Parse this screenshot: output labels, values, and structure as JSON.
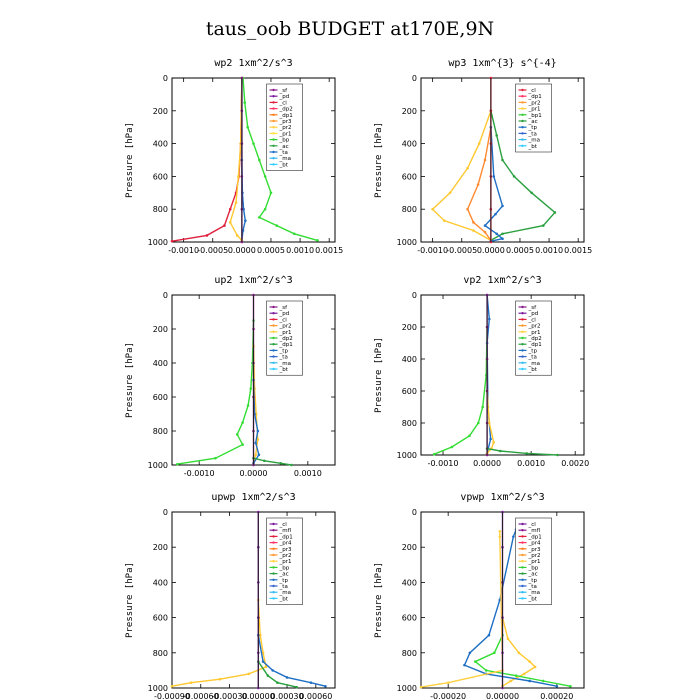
{
  "figure_title": "taus_oob  BUDGET at170E,9N",
  "chart_data": [
    {
      "type": "line",
      "title": "wp2  1xm^2/s^3",
      "ylabel": "Pressure [hPa]",
      "xlim": [
        -0.0012,
        0.0016
      ],
      "ylim": [
        0,
        1000
      ],
      "y_reversed": true,
      "xtick_labels": [
        "-0.0010",
        "-0.0005",
        "0.0000",
        "0.0005",
        "0.0010",
        "0.0015"
      ],
      "xticks": [
        -0.001,
        -0.0005,
        0,
        0.0005,
        0.001,
        0.0015
      ],
      "ytick_labels": [
        "0",
        "200",
        "400",
        "600",
        "800",
        "1000"
      ],
      "yticks": [
        0,
        200,
        400,
        600,
        800,
        1000
      ],
      "legend": [
        "_sf",
        "_pd",
        "_cl",
        "_dp2",
        "_dp1",
        "_pr3",
        "_pr2",
        "_pr1",
        "_bp",
        "_ac",
        "_ta",
        "_ma",
        "_bt"
      ],
      "legend_colors": [
        "#8b1a8b",
        "#7a1c9c",
        "#e0203c",
        "#ff3366",
        "#ff7a1a",
        "#ff9a30",
        "#ffd040",
        "#ffe040",
        "#33cc33",
        "#2aa040",
        "#1f6fc4",
        "#33bbee",
        "#33ccff"
      ],
      "series": [
        {
          "name": "_bp",
          "color": "#33dd33",
          "x": [
            2e-05,
            5e-05,
            0.0001,
            0.0002,
            0.0003,
            0.0004,
            0.0005,
            0.0004,
            0.0003,
            0.0006,
            0.0009,
            0.0013
          ],
          "y": [
            0,
            150,
            300,
            400,
            500,
            600,
            700,
            800,
            850,
            900,
            950,
            990
          ]
        },
        {
          "name": "_cl",
          "color": "#e0203c",
          "x": [
            0,
            -2e-05,
            -5e-05,
            -0.0001,
            -0.0002,
            -0.0003,
            -0.0006,
            -0.0012
          ],
          "y": [
            0,
            400,
            600,
            700,
            800,
            900,
            960,
            995
          ]
        },
        {
          "name": "_ta",
          "color": "#1f6fc4",
          "x": [
            0,
            0,
            1e-05,
            3e-05,
            6e-05,
            2e-05,
            0
          ],
          "y": [
            0,
            500,
            700,
            800,
            870,
            930,
            990
          ]
        },
        {
          "name": "_pr2",
          "color": "#ffc830",
          "x": [
            0,
            -2e-05,
            -6e-05,
            -0.0001,
            -0.0002,
            -8e-05,
            0
          ],
          "y": [
            0,
            400,
            600,
            760,
            880,
            960,
            990
          ]
        },
        {
          "name": "_sf",
          "color": "#8b1a8b",
          "x": [
            0,
            0,
            0,
            0,
            0,
            0
          ],
          "y": [
            0,
            200,
            400,
            600,
            800,
            1000
          ]
        }
      ]
    },
    {
      "type": "line",
      "title": "wp3  1xm^{3} s^{-4}",
      "ylabel": "Pressure [hPa]",
      "xlim": [
        -0.0012,
        0.0016
      ],
      "ylim": [
        0,
        1000
      ],
      "y_reversed": true,
      "xtick_labels": [
        "-0.0010",
        "-0.0005",
        "0.0000",
        "0.0005",
        "0.0010",
        "0.0015"
      ],
      "xticks": [
        -0.001,
        -0.0005,
        0,
        0.0005,
        0.001,
        0.0015
      ],
      "ytick_labels": [
        "0",
        "200",
        "400",
        "600",
        "800",
        "1000"
      ],
      "yticks": [
        0,
        200,
        400,
        600,
        800,
        1000
      ],
      "legend": [
        "_cl",
        "_dp1",
        "_pr2",
        "_pr1",
        "_bp1",
        "_ac",
        "_tp",
        "_ta",
        "_ma",
        "_bt"
      ],
      "legend_colors": [
        "#e0203c",
        "#ff3366",
        "#ff9a30",
        "#ffd040",
        "#33cc33",
        "#2aa040",
        "#1f6fc4",
        "#3366cc",
        "#33bbee",
        "#33ccff"
      ],
      "series": [
        {
          "name": "_ac",
          "color": "#2aa040",
          "x": [
            0,
            0.0001,
            0.0002,
            0.0004,
            0.0007,
            0.0011,
            0.0009,
            0.0002,
            0
          ],
          "y": [
            200,
            350,
            500,
            600,
            700,
            820,
            900,
            950,
            990
          ]
        },
        {
          "name": "_pr1",
          "color": "#ffc830",
          "x": [
            0,
            -0.0002,
            -0.0004,
            -0.0007,
            -0.001,
            -0.0008,
            -0.0003,
            0
          ],
          "y": [
            200,
            400,
            550,
            700,
            800,
            870,
            930,
            990
          ]
        },
        {
          "name": "_pr2",
          "color": "#ff8a30",
          "x": [
            0,
            -0.0001,
            -0.00022,
            -0.0004,
            -0.0003,
            -0.0001,
            0
          ],
          "y": [
            300,
            500,
            650,
            800,
            880,
            940,
            990
          ]
        },
        {
          "name": "_tp",
          "color": "#1f6fc4",
          "x": [
            0,
            5e-05,
            0.0002,
            8e-05,
            -0.0001,
            0.0001,
            0.0002,
            0
          ],
          "y": [
            300,
            600,
            780,
            830,
            900,
            950,
            980,
            995
          ]
        },
        {
          "name": "_cl",
          "color": "#e0203c",
          "x": [
            0,
            0,
            0,
            0,
            0,
            0
          ],
          "y": [
            0,
            200,
            400,
            600,
            800,
            1000
          ]
        }
      ]
    },
    {
      "type": "line",
      "title": "up2  1xm^2/s^3",
      "ylabel": "Pressure [hPa]",
      "xlim": [
        -0.0015,
        0.0015
      ],
      "ylim": [
        0,
        1000
      ],
      "y_reversed": true,
      "xtick_labels": [
        "-0.0010",
        "0.0000",
        "0.0010"
      ],
      "xticks": [
        -0.001,
        0,
        0.001
      ],
      "ytick_labels": [
        "0",
        "200",
        "400",
        "600",
        "800",
        "1000"
      ],
      "yticks": [
        0,
        200,
        400,
        600,
        800,
        1000
      ],
      "legend": [
        "_sf",
        "_pd",
        "_cl",
        "_pr2",
        "_pr1",
        "_dp2",
        "_dp1",
        "_tp",
        "_ta",
        "_ma",
        "_bt"
      ],
      "legend_colors": [
        "#8b1a8b",
        "#7a1c9c",
        "#e0203c",
        "#ff9a30",
        "#ffd040",
        "#33cc33",
        "#2aa040",
        "#1f6fc4",
        "#3366cc",
        "#33bbee",
        "#33ccff"
      ],
      "series": [
        {
          "name": "_dp2",
          "color": "#33dd33",
          "x": [
            0,
            -2e-05,
            -5e-05,
            -0.0001,
            -0.0002,
            -0.0003,
            -0.0002,
            -0.0007,
            -0.0014
          ],
          "y": [
            150,
            400,
            550,
            650,
            750,
            820,
            880,
            960,
            995
          ]
        },
        {
          "name": "_pr1",
          "color": "#ffc830",
          "x": [
            0,
            2e-05,
            5e-05,
            8e-05,
            4e-05,
            0
          ],
          "y": [
            300,
            550,
            700,
            850,
            940,
            990
          ]
        },
        {
          "name": "_tp",
          "color": "#1f6fc4",
          "x": [
            0,
            2e-05,
            8e-05,
            4e-05,
            0.0001,
            0
          ],
          "y": [
            500,
            700,
            800,
            870,
            940,
            990
          ]
        },
        {
          "name": "_dp1",
          "color": "#2aa040",
          "x": [
            0,
            0.0002,
            0.0005,
            0.0007
          ],
          "y": [
            960,
            975,
            990,
            1000
          ]
        },
        {
          "name": "_sf",
          "color": "#8b1a8b",
          "x": [
            0,
            0,
            0,
            0,
            0,
            0
          ],
          "y": [
            0,
            200,
            400,
            600,
            800,
            1000
          ]
        }
      ]
    },
    {
      "type": "line",
      "title": "vp2  1xm^2/s^3",
      "ylabel": "Pressure [hPa]",
      "xlim": [
        -0.0015,
        0.0022
      ],
      "ylim": [
        0,
        1000
      ],
      "y_reversed": true,
      "xtick_labels": [
        "-0.0010",
        "0.0000",
        "0.0010",
        "0.0020"
      ],
      "xticks": [
        -0.001,
        0,
        0.001,
        0.002
      ],
      "ytick_labels": [
        "0",
        "200",
        "400",
        "600",
        "800",
        "1000"
      ],
      "yticks": [
        0,
        200,
        400,
        600,
        800,
        1000
      ],
      "legend": [
        "_sf",
        "_pd",
        "_cl",
        "_pr2",
        "_pr1",
        "_dp2",
        "_dp1",
        "_tp",
        "_ta",
        "_ma",
        "_bt"
      ],
      "legend_colors": [
        "#8b1a8b",
        "#7a1c9c",
        "#e0203c",
        "#ff9a30",
        "#ffd040",
        "#33cc33",
        "#2aa040",
        "#1f6fc4",
        "#3366cc",
        "#33bbee",
        "#33ccff"
      ],
      "series": [
        {
          "name": "_dp2",
          "color": "#33dd33",
          "x": [
            0,
            -2e-05,
            -0.0001,
            -0.0002,
            -0.0004,
            -0.0008,
            -0.0012
          ],
          "y": [
            200,
            500,
            700,
            800,
            880,
            950,
            995
          ]
        },
        {
          "name": "_tp",
          "color": "#1f6fc4",
          "x": [
            0,
            5e-05,
            0,
            2e-05,
            8e-05,
            0
          ],
          "y": [
            0,
            150,
            300,
            700,
            900,
            990
          ]
        },
        {
          "name": "_pr1",
          "color": "#ffc830",
          "x": [
            0,
            5e-05,
            0.00015,
            0.0001,
            0
          ],
          "y": [
            600,
            800,
            920,
            960,
            990
          ]
        },
        {
          "name": "_dp1",
          "color": "#2aa040",
          "x": [
            0,
            0.0003,
            0.0009,
            0.0016
          ],
          "y": [
            960,
            975,
            990,
            1000
          ]
        },
        {
          "name": "_sf",
          "color": "#8b1a8b",
          "x": [
            0,
            0,
            0,
            0,
            0,
            0
          ],
          "y": [
            0,
            200,
            400,
            600,
            800,
            1000
          ]
        }
      ]
    },
    {
      "type": "line",
      "title": "upwp  1xm^2/s^3",
      "ylabel": "Pressure [hPa]",
      "xlim": [
        -0.0009,
        0.0008
      ],
      "ylim": [
        0,
        1000
      ],
      "y_reversed": true,
      "xtick_labels": [
        "-0.00090",
        "-0.00060",
        "-0.00030",
        "0.00000",
        "0.00030",
        "0.00060"
      ],
      "xticks": [
        -0.0009,
        -0.0006,
        -0.0003,
        0,
        0.0003,
        0.0006
      ],
      "ytick_labels": [
        "0",
        "200",
        "400",
        "600",
        "800",
        "1000"
      ],
      "yticks": [
        0,
        200,
        400,
        600,
        800,
        1000
      ],
      "legend": [
        "_cl",
        "_mfl",
        "_dp1",
        "_pr4",
        "_pr3",
        "_pr2",
        "_pr1",
        "_bp",
        "_ac",
        "_tp",
        "_ta",
        "_ma",
        "_bt"
      ],
      "legend_colors": [
        "#7a1c9c",
        "#8b1a8b",
        "#e0203c",
        "#ff3366",
        "#ff7a1a",
        "#ff9a30",
        "#ffd040",
        "#33cc33",
        "#2aa040",
        "#1f6fc4",
        "#3366cc",
        "#33bbee",
        "#33ccff"
      ],
      "series": [
        {
          "name": "_pr1",
          "color": "#ffc830",
          "x": [
            0,
            2e-05,
            5e-05,
            8e-05,
            -0.0001,
            -0.0004,
            -0.0007,
            -0.0009
          ],
          "y": [
            500,
            700,
            800,
            880,
            920,
            950,
            970,
            990
          ]
        },
        {
          "name": "_tp",
          "color": "#1f6fc4",
          "x": [
            0,
            5e-05,
            0.00015,
            0.0003,
            0.00055,
            0.0007
          ],
          "y": [
            700,
            850,
            900,
            940,
            970,
            990
          ]
        },
        {
          "name": "_ac",
          "color": "#2aa040",
          "x": [
            0,
            0.0001,
            0.0002,
            0.0004
          ],
          "y": [
            850,
            930,
            970,
            995
          ]
        },
        {
          "name": "_cl",
          "color": "#7a1c9c",
          "x": [
            0,
            0,
            0,
            0,
            0,
            0
          ],
          "y": [
            0,
            200,
            400,
            600,
            800,
            1000
          ]
        }
      ]
    },
    {
      "type": "line",
      "title": "vpwp  1xm^2/s^3",
      "ylabel": "Pressure [hPa]",
      "xlim": [
        -0.0003,
        0.0003
      ],
      "ylim": [
        0,
        1000
      ],
      "y_reversed": true,
      "xtick_labels": [
        "-0.00020",
        "0.00000",
        "0.00020"
      ],
      "xticks": [
        -0.0002,
        0,
        0.0002
      ],
      "ytick_labels": [
        "0",
        "200",
        "400",
        "600",
        "800",
        "1000"
      ],
      "yticks": [
        0,
        200,
        400,
        600,
        800,
        1000
      ],
      "legend": [
        "_cl",
        "_mfl",
        "_dp1",
        "_pr4",
        "_pr3",
        "_pr2",
        "_pr1",
        "_bp",
        "_ac",
        "_tp",
        "_ta",
        "_ma",
        "_bt"
      ],
      "legend_colors": [
        "#7a1c9c",
        "#8b1a8b",
        "#e0203c",
        "#ff3366",
        "#ff7a1a",
        "#ff9a30",
        "#ffd040",
        "#33cc33",
        "#2aa040",
        "#1f6fc4",
        "#3366cc",
        "#33bbee",
        "#33ccff"
      ],
      "series": [
        {
          "name": "_pr1",
          "color": "#ffc830",
          "x": [
            0,
            2e-05,
            6e-05,
            0.0001,
            0.00012,
            8e-05,
            3e-05,
            0
          ],
          "y": [
            600,
            720,
            800,
            850,
            880,
            920,
            960,
            990
          ]
        },
        {
          "name": "_tp",
          "color": "#1f6fc4",
          "x": [
            5e-05,
            4e-05,
            -1e-05,
            -5e-05,
            -0.00012,
            -0.00014,
            -6e-05,
            0.0001,
            0.0002
          ],
          "y": [
            100,
            140,
            500,
            700,
            800,
            870,
            920,
            960,
            990
          ]
        },
        {
          "name": "_bp",
          "color": "#33dd33",
          "x": [
            0,
            -3e-05,
            -0.0001,
            -6e-05,
            5e-05,
            0.00015,
            0.00025
          ],
          "y": [
            700,
            800,
            850,
            900,
            930,
            960,
            990
          ]
        },
        {
          "name": "_pr2",
          "color": "#ffd040",
          "x": [
            -1e-05,
            -1e-05,
            0,
            -0.0002,
            -0.0003
          ],
          "y": [
            110,
            140,
            900,
            970,
            995
          ]
        },
        {
          "name": "_cl",
          "color": "#7a1c9c",
          "x": [
            0,
            0,
            0,
            0,
            0,
            0
          ],
          "y": [
            0,
            200,
            400,
            600,
            800,
            1000
          ]
        }
      ]
    }
  ]
}
